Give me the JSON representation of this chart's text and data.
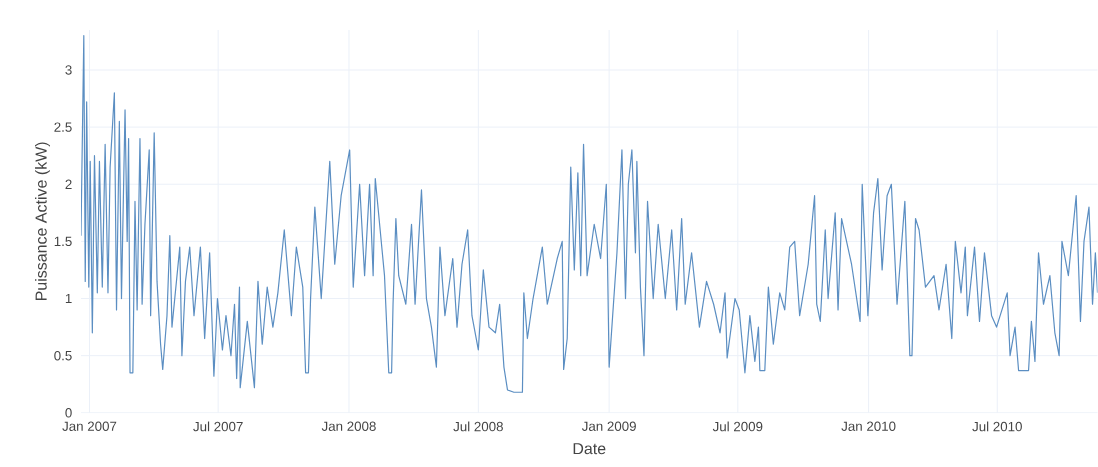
{
  "chart_data": {
    "type": "line",
    "xlabel": "Date",
    "ylabel": "Puissance Active (kW)",
    "grid": true,
    "xlim": [
      "2006-12-20",
      "2010-11-19"
    ],
    "ylim": [
      0,
      3.35
    ],
    "xticks": [
      {
        "value": "2007-01-01",
        "label": "Jan 2007"
      },
      {
        "value": "2007-07-01",
        "label": "Jul 2007"
      },
      {
        "value": "2008-01-01",
        "label": "Jan 2008"
      },
      {
        "value": "2008-07-01",
        "label": "Jul 2008"
      },
      {
        "value": "2009-01-01",
        "label": "Jan 2009"
      },
      {
        "value": "2009-07-01",
        "label": "Jul 2009"
      },
      {
        "value": "2010-01-01",
        "label": "Jan 2010"
      },
      {
        "value": "2010-07-01",
        "label": "Jul 2010"
      }
    ],
    "yticks": [
      0,
      0.5,
      1,
      1.5,
      2,
      2.5,
      3
    ],
    "series": [
      {
        "color": "#5b8ec2",
        "x": [
          "2006-12-20",
          "2006-12-24",
          "2006-12-26",
          "2006-12-28",
          "2006-12-31",
          "2007-01-02",
          "2007-01-05",
          "2007-01-08",
          "2007-01-12",
          "2007-01-15",
          "2007-01-19",
          "2007-01-23",
          "2007-01-27",
          "2007-01-30",
          "2007-02-05",
          "2007-02-08",
          "2007-02-12",
          "2007-02-15",
          "2007-02-20",
          "2007-02-23",
          "2007-02-25",
          "2007-02-27",
          "2007-03-03",
          "2007-03-06",
          "2007-03-09",
          "2007-03-13",
          "2007-03-16",
          "2007-03-20",
          "2007-03-26",
          "2007-03-28",
          "2007-04-02",
          "2007-04-06",
          "2007-04-11",
          "2007-04-14",
          "2007-04-20",
          "2007-04-24",
          "2007-04-27",
          "2007-05-08",
          "2007-05-11",
          "2007-05-16",
          "2007-05-22",
          "2007-05-28",
          "2007-06-06",
          "2007-06-12",
          "2007-06-19",
          "2007-06-25",
          "2007-06-30",
          "2007-07-07",
          "2007-07-12",
          "2007-07-19",
          "2007-07-24",
          "2007-07-27",
          "2007-07-31",
          "2007-08-01",
          "2007-08-11",
          "2007-08-21",
          "2007-08-26",
          "2007-09-01",
          "2007-09-08",
          "2007-09-16",
          "2007-09-23",
          "2007-10-02",
          "2007-10-12",
          "2007-10-19",
          "2007-10-28",
          "2007-11-01",
          "2007-11-05",
          "2007-11-08",
          "2007-11-14",
          "2007-11-23",
          "2007-12-05",
          "2007-12-12",
          "2007-12-21",
          "2008-01-02",
          "2008-01-07",
          "2008-01-16",
          "2008-01-23",
          "2008-01-30",
          "2008-02-04",
          "2008-02-07",
          "2008-02-20",
          "2008-02-26",
          "2008-03-01",
          "2008-03-03",
          "2008-03-07",
          "2008-03-11",
          "2008-03-21",
          "2008-03-29",
          "2008-04-03",
          "2008-04-12",
          "2008-04-19",
          "2008-04-26",
          "2008-05-03",
          "2008-05-08",
          "2008-05-15",
          "2008-05-26",
          "2008-06-01",
          "2008-06-08",
          "2008-06-16",
          "2008-06-22",
          "2008-07-01",
          "2008-07-08",
          "2008-07-16",
          "2008-07-25",
          "2008-07-31",
          "2008-08-06",
          "2008-08-11",
          "2008-08-20",
          "2008-09-01",
          "2008-09-03",
          "2008-09-08",
          "2008-09-16",
          "2008-09-29",
          "2008-10-06",
          "2008-10-20",
          "2008-10-27",
          "2008-10-29",
          "2008-11-03",
          "2008-11-08",
          "2008-11-13",
          "2008-11-18",
          "2008-11-22",
          "2008-11-26",
          "2008-12-01",
          "2008-12-11",
          "2008-12-20",
          "2008-12-28",
          "2009-01-01",
          "2009-01-12",
          "2009-01-19",
          "2009-01-24",
          "2009-01-28",
          "2009-02-02",
          "2009-02-07",
          "2009-02-09",
          "2009-02-14",
          "2009-02-19",
          "2009-02-24",
          "2009-03-04",
          "2009-03-11",
          "2009-03-21",
          "2009-03-30",
          "2009-04-06",
          "2009-04-13",
          "2009-04-18",
          "2009-04-27",
          "2009-05-08",
          "2009-05-18",
          "2009-05-28",
          "2009-06-06",
          "2009-06-13",
          "2009-06-16",
          "2009-06-27",
          "2009-07-03",
          "2009-07-11",
          "2009-07-18",
          "2009-07-25",
          "2009-07-30",
          "2009-08-01",
          "2009-08-08",
          "2009-08-13",
          "2009-08-20",
          "2009-08-29",
          "2009-09-05",
          "2009-09-12",
          "2009-09-19",
          "2009-09-26",
          "2009-10-08",
          "2009-10-17",
          "2009-10-20",
          "2009-10-25",
          "2009-11-01",
          "2009-11-05",
          "2009-11-15",
          "2009-11-19",
          "2009-11-24",
          "2009-12-08",
          "2009-12-20",
          "2009-12-23",
          "2009-12-31",
          "2010-01-08",
          "2010-01-14",
          "2010-01-20",
          "2010-01-27",
          "2010-02-02",
          "2010-02-10",
          "2010-02-21",
          "2010-02-28",
          "2010-03-03",
          "2010-03-08",
          "2010-03-13",
          "2010-03-22",
          "2010-04-03",
          "2010-04-10",
          "2010-04-20",
          "2010-04-28",
          "2010-05-03",
          "2010-05-11",
          "2010-05-17",
          "2010-05-20",
          "2010-05-30",
          "2010-06-06",
          "2010-06-13",
          "2010-06-23",
          "2010-06-30",
          "2010-07-15",
          "2010-07-19",
          "2010-07-26",
          "2010-07-31",
          "2010-08-14",
          "2010-08-18",
          "2010-08-23",
          "2010-08-28",
          "2010-09-04",
          "2010-09-13",
          "2010-09-20",
          "2010-09-26",
          "2010-09-30",
          "2010-10-09",
          "2010-10-20",
          "2010-10-26",
          "2010-10-31",
          "2010-11-07",
          "2010-11-12",
          "2010-11-16",
          "2010-11-19"
        ],
        "values": [
          1.55,
          3.3,
          1.15,
          2.72,
          1.1,
          2.2,
          0.7,
          2.25,
          1.05,
          2.2,
          1.1,
          2.35,
          1.05,
          2.15,
          2.8,
          0.9,
          2.55,
          1.0,
          2.65,
          1.5,
          2.4,
          0.35,
          0.35,
          1.85,
          0.9,
          2.4,
          0.95,
          1.65,
          2.3,
          0.85,
          2.45,
          1.15,
          0.6,
          0.38,
          0.85,
          1.55,
          0.75,
          1.45,
          0.5,
          1.15,
          1.45,
          0.85,
          1.45,
          0.65,
          1.4,
          0.32,
          1.0,
          0.55,
          0.85,
          0.5,
          0.95,
          0.3,
          1.1,
          0.22,
          0.8,
          0.22,
          1.15,
          0.6,
          1.1,
          0.75,
          1.05,
          1.6,
          0.85,
          1.45,
          1.1,
          0.35,
          0.35,
          1.0,
          1.8,
          1.0,
          2.2,
          1.3,
          1.9,
          2.3,
          1.1,
          2.0,
          1.2,
          2.0,
          1.2,
          2.05,
          1.2,
          0.35,
          0.35,
          0.95,
          1.7,
          1.2,
          0.95,
          1.65,
          0.95,
          1.95,
          1.0,
          0.75,
          0.4,
          1.45,
          0.85,
          1.35,
          0.75,
          1.3,
          1.6,
          0.85,
          0.55,
          1.25,
          0.75,
          0.7,
          0.95,
          0.4,
          0.2,
          0.18,
          0.18,
          1.05,
          0.65,
          1.0,
          1.45,
          0.95,
          1.35,
          1.5,
          0.38,
          0.65,
          2.15,
          1.25,
          2.1,
          1.2,
          2.35,
          1.2,
          1.65,
          1.35,
          2.0,
          0.4,
          1.4,
          2.3,
          1.0,
          2.0,
          2.3,
          1.4,
          2.2,
          1.1,
          0.5,
          1.85,
          1.0,
          1.65,
          1.0,
          1.6,
          0.9,
          1.7,
          0.95,
          1.4,
          0.75,
          1.15,
          0.95,
          0.7,
          1.05,
          0.48,
          1.0,
          0.9,
          0.35,
          0.85,
          0.45,
          0.75,
          0.37,
          0.37,
          1.1,
          0.6,
          1.05,
          0.9,
          1.45,
          1.5,
          0.85,
          1.3,
          1.9,
          0.95,
          0.8,
          1.6,
          1.0,
          1.75,
          0.9,
          1.7,
          1.3,
          0.8,
          2.0,
          0.85,
          1.75,
          2.05,
          1.25,
          1.9,
          2.0,
          0.95,
          1.85,
          0.5,
          0.5,
          1.7,
          1.6,
          1.1,
          1.2,
          0.9,
          1.3,
          0.65,
          1.5,
          1.05,
          1.45,
          0.85,
          1.45,
          0.8,
          1.4,
          0.85,
          0.75,
          1.05,
          0.5,
          0.75,
          0.37,
          0.37,
          0.8,
          0.45,
          1.4,
          0.95,
          1.2,
          0.7,
          0.5,
          1.5,
          1.2,
          1.9,
          0.8,
          1.5,
          1.8,
          0.95,
          1.4,
          1.05
        ]
      }
    ]
  }
}
